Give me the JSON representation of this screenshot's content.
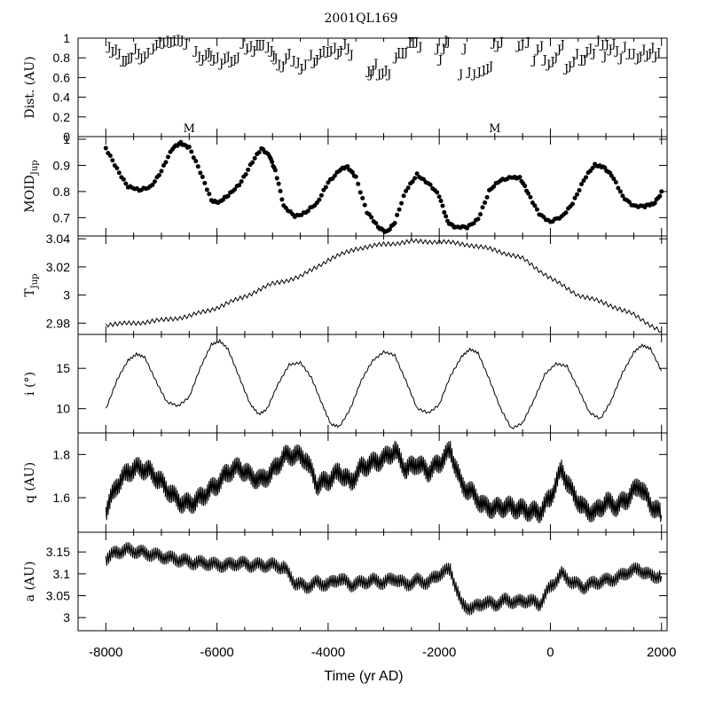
{
  "title": "2001QL169",
  "xlabel": "Time (yr AD)",
  "x_ticks": [
    -8000,
    -6000,
    -4000,
    -2000,
    0,
    2000
  ],
  "xlim": [
    -8500,
    2100
  ],
  "chart_data": [
    {
      "type": "scatter",
      "id": "dist",
      "ylabel": "Dist. (AU)",
      "ylim": [
        0,
        1
      ],
      "y_ticks": [
        "0",
        "0.2",
        "0.4",
        "0.6",
        "0.8",
        "1"
      ],
      "marker": "J",
      "annotations": [
        {
          "label": "M",
          "x": -6500
        },
        {
          "label": "M",
          "x": -1000
        }
      ],
      "points": [
        [
          -7940,
          0.92
        ],
        [
          -7880,
          0.87
        ],
        [
          -7820,
          0.89
        ],
        [
          -7760,
          0.85
        ],
        [
          -7690,
          0.78
        ],
        [
          -7640,
          0.78
        ],
        [
          -7590,
          0.8
        ],
        [
          -7540,
          0.81
        ],
        [
          -7470,
          0.9
        ],
        [
          -7410,
          0.85
        ],
        [
          -7360,
          0.8
        ],
        [
          -7300,
          0.82
        ],
        [
          -7240,
          0.86
        ],
        [
          -7150,
          0.9
        ],
        [
          -7090,
          0.94
        ],
        [
          -7030,
          0.97
        ],
        [
          -6960,
          0.96
        ],
        [
          -6890,
          0.98
        ],
        [
          -6830,
          0.97
        ],
        [
          -6770,
          0.98
        ],
        [
          -6700,
          0.99
        ],
        [
          -6630,
          0.98
        ],
        [
          -6550,
          0.95
        ],
        [
          -6380,
          0.88
        ],
        [
          -6320,
          0.82
        ],
        [
          -6260,
          0.79
        ],
        [
          -6200,
          0.84
        ],
        [
          -6150,
          0.86
        ],
        [
          -6110,
          0.83
        ],
        [
          -6060,
          0.79
        ],
        [
          -5990,
          0.81
        ],
        [
          -5920,
          0.75
        ],
        [
          -5860,
          0.8
        ],
        [
          -5800,
          0.82
        ],
        [
          -5740,
          0.77
        ],
        [
          -5680,
          0.79
        ],
        [
          -5620,
          0.81
        ],
        [
          -5530,
          0.96
        ],
        [
          -5460,
          0.9
        ],
        [
          -5390,
          0.93
        ],
        [
          -5330,
          0.88
        ],
        [
          -5280,
          0.94
        ],
        [
          -5230,
          0.94
        ],
        [
          -5170,
          0.94
        ],
        [
          -5080,
          0.92
        ],
        [
          -5020,
          0.88
        ],
        [
          -4980,
          0.83
        ],
        [
          -4940,
          0.8
        ],
        [
          -4880,
          0.74
        ],
        [
          -4810,
          0.72
        ],
        [
          -4760,
          0.8
        ],
        [
          -4700,
          0.85
        ],
        [
          -4620,
          0.78
        ],
        [
          -4540,
          0.76
        ],
        [
          -4480,
          0.7
        ],
        [
          -4410,
          0.74
        ],
        [
          -4310,
          0.84
        ],
        [
          -4250,
          0.76
        ],
        [
          -4200,
          0.79
        ],
        [
          -4140,
          0.85
        ],
        [
          -4080,
          0.88
        ],
        [
          -4010,
          0.87
        ],
        [
          -3950,
          0.88
        ],
        [
          -3880,
          0.91
        ],
        [
          -3820,
          0.85
        ],
        [
          -3770,
          0.88
        ],
        [
          -3700,
          0.95
        ],
        [
          -3640,
          0.9
        ],
        [
          -3580,
          0.84
        ],
        [
          -3270,
          0.67
        ],
        [
          -3230,
          0.64
        ],
        [
          -3190,
          0.68
        ],
        [
          -3140,
          0.75
        ],
        [
          -3080,
          0.64
        ],
        [
          -3020,
          0.65
        ],
        [
          -2960,
          0.68
        ],
        [
          -2900,
          0.64
        ],
        [
          -2780,
          0.81
        ],
        [
          -2730,
          0.86
        ],
        [
          -2660,
          0.86
        ],
        [
          -2600,
          0.86
        ],
        [
          -2530,
          0.97
        ],
        [
          -2470,
          0.97
        ],
        [
          -2410,
          0.97
        ],
        [
          -2340,
          0.92
        ],
        [
          -2030,
          0.9
        ],
        [
          -1980,
          0.79
        ],
        [
          -1920,
          0.9
        ],
        [
          -1880,
          0.98
        ],
        [
          -1840,
          0.97
        ],
        [
          -1610,
          0.64
        ],
        [
          -1540,
          0.9
        ],
        [
          -1460,
          0.66
        ],
        [
          -1370,
          0.64
        ],
        [
          -1280,
          0.66
        ],
        [
          -1200,
          0.68
        ],
        [
          -1130,
          0.7
        ],
        [
          -1070,
          0.72
        ],
        [
          -1020,
          0.96
        ],
        [
          -950,
          0.93
        ],
        [
          -880,
          0.97
        ],
        [
          -570,
          0.93
        ],
        [
          -500,
          0.94
        ],
        [
          -400,
          0.97
        ],
        [
          -290,
          0.78
        ],
        [
          -230,
          0.89
        ],
        [
          -160,
          0.93
        ],
        [
          -100,
          0.79
        ],
        [
          -30,
          0.74
        ],
        [
          40,
          0.77
        ],
        [
          100,
          0.81
        ],
        [
          160,
          0.89
        ],
        [
          220,
          0.94
        ],
        [
          290,
          0.7
        ],
        [
          350,
          0.72
        ],
        [
          420,
          0.77
        ],
        [
          480,
          0.85
        ],
        [
          560,
          0.79
        ],
        [
          620,
          0.79
        ],
        [
          660,
          0.87
        ],
        [
          720,
          0.9
        ],
        [
          780,
          0.85
        ],
        [
          860,
          0.98
        ],
        [
          940,
          0.94
        ],
        [
          980,
          0.82
        ],
        [
          1020,
          0.94
        ],
        [
          1080,
          0.89
        ],
        [
          1140,
          0.95
        ],
        [
          1200,
          0.88
        ],
        [
          1270,
          0.8
        ],
        [
          1340,
          0.92
        ],
        [
          1420,
          0.85
        ],
        [
          1500,
          0.85
        ],
        [
          1570,
          0.8
        ],
        [
          1620,
          0.82
        ],
        [
          1680,
          0.89
        ],
        [
          1740,
          0.83
        ],
        [
          1790,
          0.85
        ],
        [
          1840,
          0.91
        ],
        [
          1890,
          0.82
        ],
        [
          1950,
          0.86
        ]
      ]
    },
    {
      "type": "scatter",
      "id": "moid",
      "ylabel": "MOID",
      "ylabel_sub": "Jup",
      "ylim": [
        0.63,
        1.01
      ],
      "y_ticks": [
        "0.7",
        "0.8",
        "0.9",
        "1"
      ],
      "x": [
        -8000,
        -7800,
        -7600,
        -7400,
        -7200,
        -7000,
        -6800,
        -6650,
        -6500,
        -6300,
        -6100,
        -5950,
        -5800,
        -5600,
        -5400,
        -5200,
        -5050,
        -4950,
        -4800,
        -4600,
        -4400,
        -4200,
        -4000,
        -3800,
        -3650,
        -3500,
        -3300,
        -3100,
        -2950,
        -2800,
        -2600,
        -2400,
        -2200,
        -2000,
        -1850,
        -1700,
        -1500,
        -1300,
        -1100,
        -900,
        -700,
        -550,
        -400,
        -200,
        0,
        200,
        400,
        600,
        800,
        950,
        1100,
        1300,
        1500,
        1700,
        1850,
        2000
      ],
      "y": [
        0.96,
        0.89,
        0.82,
        0.8,
        0.82,
        0.88,
        0.96,
        0.99,
        0.97,
        0.87,
        0.77,
        0.76,
        0.78,
        0.83,
        0.9,
        0.96,
        0.94,
        0.88,
        0.74,
        0.71,
        0.72,
        0.75,
        0.84,
        0.88,
        0.89,
        0.86,
        0.72,
        0.66,
        0.65,
        0.68,
        0.8,
        0.87,
        0.83,
        0.78,
        0.69,
        0.66,
        0.66,
        0.7,
        0.8,
        0.84,
        0.86,
        0.85,
        0.79,
        0.72,
        0.68,
        0.7,
        0.76,
        0.84,
        0.9,
        0.9,
        0.86,
        0.78,
        0.75,
        0.74,
        0.75,
        0.8
      ]
    },
    {
      "type": "line",
      "id": "tjup",
      "ylabel": "T",
      "ylabel_sub": "Jup",
      "ylim": [
        2.972,
        3.042
      ],
      "y_ticks": [
        "2.98",
        "3",
        "3.02",
        "3.04"
      ],
      "x": [
        -8000,
        -7500,
        -7000,
        -6500,
        -6000,
        -5500,
        -5000,
        -4500,
        -4000,
        -3500,
        -3000,
        -2500,
        -2000,
        -1500,
        -1000,
        -500,
        0,
        500,
        1000,
        1500,
        2000
      ],
      "y": [
        2.979,
        2.98,
        2.982,
        2.985,
        2.991,
        2.999,
        3.008,
        3.013,
        3.025,
        3.033,
        3.036,
        3.038,
        3.038,
        3.036,
        3.032,
        3.026,
        3.012,
        3.0,
        2.994,
        2.986,
        2.974
      ]
    },
    {
      "type": "line",
      "id": "inc",
      "ylabel": "i (°)",
      "ylim": [
        7.0,
        19.2
      ],
      "y_ticks": [
        "10",
        "15"
      ],
      "x": [
        -8000,
        -7800,
        -7600,
        -7450,
        -7300,
        -7100,
        -6900,
        -6700,
        -6500,
        -6300,
        -6100,
        -5950,
        -5800,
        -5600,
        -5400,
        -5250,
        -5100,
        -4900,
        -4700,
        -4500,
        -4300,
        -4100,
        -3950,
        -3800,
        -3600,
        -3400,
        -3200,
        -3000,
        -2800,
        -2600,
        -2400,
        -2200,
        -2000,
        -1800,
        -1600,
        -1450,
        -1300,
        -1100,
        -900,
        -700,
        -500,
        -300,
        -100,
        100,
        300,
        500,
        700,
        900,
        1100,
        1300,
        1500,
        1650,
        1800,
        2000
      ],
      "y": [
        10.0,
        13.5,
        16.0,
        16.8,
        16.3,
        13.5,
        10.8,
        10.3,
        11.5,
        15.0,
        18.0,
        18.4,
        17.3,
        14.0,
        10.5,
        9.3,
        10.0,
        13.0,
        15.5,
        15.7,
        13.8,
        10.5,
        8.0,
        7.8,
        10.0,
        13.5,
        16.0,
        17.0,
        16.6,
        13.5,
        10.0,
        9.5,
        10.5,
        14.0,
        16.5,
        17.3,
        16.9,
        13.7,
        10.0,
        7.6,
        8.2,
        11.0,
        14.3,
        15.5,
        15.3,
        12.5,
        9.5,
        8.8,
        11.0,
        14.5,
        17.0,
        17.8,
        17.5,
        14.7
      ]
    },
    {
      "type": "line",
      "id": "q",
      "ylabel": "q (AU)",
      "ylim": [
        1.44,
        1.9
      ],
      "y_ticks": [
        "1.6",
        "1.8"
      ],
      "x": [
        -8000,
        -7800,
        -7600,
        -7400,
        -7200,
        -7000,
        -6800,
        -6600,
        -6400,
        -6200,
        -6000,
        -5800,
        -5600,
        -5400,
        -5200,
        -5000,
        -4800,
        -4600,
        -4400,
        -4200,
        -4000,
        -3800,
        -3600,
        -3400,
        -3200,
        -3000,
        -2800,
        -2600,
        -2400,
        -2200,
        -2000,
        -1800,
        -1600,
        -1400,
        -1200,
        -1000,
        -800,
        -600,
        -400,
        -200,
        0,
        200,
        400,
        600,
        800,
        1000,
        1200,
        1400,
        1600,
        1800,
        2000
      ],
      "y": [
        1.54,
        1.66,
        1.72,
        1.74,
        1.72,
        1.67,
        1.61,
        1.57,
        1.58,
        1.62,
        1.66,
        1.72,
        1.74,
        1.7,
        1.68,
        1.72,
        1.79,
        1.8,
        1.78,
        1.66,
        1.68,
        1.72,
        1.67,
        1.74,
        1.76,
        1.78,
        1.82,
        1.73,
        1.76,
        1.72,
        1.76,
        1.82,
        1.66,
        1.62,
        1.56,
        1.55,
        1.56,
        1.55,
        1.54,
        1.53,
        1.6,
        1.73,
        1.62,
        1.55,
        1.53,
        1.58,
        1.56,
        1.6,
        1.66,
        1.57,
        1.52
      ]
    },
    {
      "type": "line",
      "id": "a",
      "ylabel": "a (AU)",
      "ylim": [
        2.97,
        3.195
      ],
      "y_ticks": [
        "3",
        "3.05",
        "3.1",
        "3.15"
      ],
      "x": [
        -8000,
        -7800,
        -7600,
        -7400,
        -7200,
        -7000,
        -6800,
        -6600,
        -6400,
        -6200,
        -6000,
        -5800,
        -5600,
        -5400,
        -5200,
        -5000,
        -4800,
        -4600,
        -4400,
        -4200,
        -4000,
        -3800,
        -3600,
        -3400,
        -3200,
        -3000,
        -2800,
        -2600,
        -2400,
        -2200,
        -2000,
        -1800,
        -1600,
        -1400,
        -1200,
        -1000,
        -800,
        -600,
        -400,
        -200,
        0,
        200,
        400,
        600,
        800,
        1000,
        1200,
        1400,
        1600,
        1800,
        2000
      ],
      "y": [
        3.135,
        3.15,
        3.155,
        3.15,
        3.145,
        3.14,
        3.135,
        3.13,
        3.125,
        3.125,
        3.12,
        3.12,
        3.125,
        3.12,
        3.12,
        3.12,
        3.115,
        3.08,
        3.07,
        3.08,
        3.075,
        3.09,
        3.075,
        3.08,
        3.085,
        3.08,
        3.09,
        3.075,
        3.085,
        3.08,
        3.1,
        3.11,
        3.03,
        3.02,
        3.035,
        3.03,
        3.04,
        3.035,
        3.04,
        3.03,
        3.07,
        3.1,
        3.08,
        3.07,
        3.08,
        3.085,
        3.09,
        3.105,
        3.11,
        3.095,
        3.095
      ]
    }
  ]
}
